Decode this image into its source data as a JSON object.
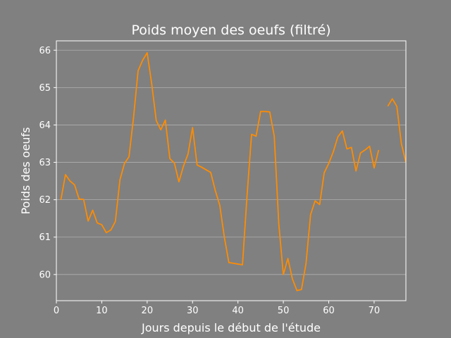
{
  "chart_data": {
    "type": "line",
    "title": "Poids moyen des oeufs (filtré)",
    "xlabel": "Jours depuis le début de l'étude",
    "ylabel": "Poids des oeufs",
    "xlim": [
      0,
      77
    ],
    "ylim": [
      59.3,
      66.25
    ],
    "xticks": [
      0,
      10,
      20,
      30,
      40,
      50,
      60,
      70
    ],
    "yticks": [
      60,
      61,
      62,
      63,
      64,
      65,
      66
    ],
    "grid": "horizontal",
    "legend": "none",
    "colors": {
      "background": "#808080",
      "line": "#ff8c00",
      "grid": "#b0b0b0",
      "text": "#ffffff"
    },
    "series": [
      {
        "segments": [
          {
            "x": [
              1,
              2,
              3,
              4,
              5,
              6,
              7,
              8,
              9,
              10,
              11,
              12,
              13,
              14,
              15,
              16,
              17,
              18,
              19,
              20,
              21,
              22,
              23,
              24,
              25,
              26,
              27,
              28,
              29,
              30,
              31,
              32,
              33,
              34,
              35,
              36,
              37,
              38,
              39,
              40,
              41,
              42,
              43,
              44,
              45,
              46,
              47,
              48,
              49,
              50,
              51,
              52,
              53,
              54,
              55,
              56,
              57,
              58,
              59,
              60,
              61,
              62,
              63,
              64,
              65,
              66,
              67,
              68,
              69,
              70,
              71
            ],
            "y": [
              62.0,
              62.67,
              62.5,
              62.4,
              62.02,
              62.01,
              61.43,
              61.72,
              61.38,
              61.33,
              61.12,
              61.19,
              61.42,
              62.53,
              62.97,
              63.15,
              64.2,
              65.45,
              65.73,
              65.93,
              65.1,
              64.12,
              63.87,
              64.13,
              63.1,
              62.98,
              62.48,
              62.9,
              63.22,
              63.93,
              62.93,
              62.87,
              62.8,
              62.73,
              62.25,
              61.85,
              61.0,
              60.32,
              60.3,
              60.28,
              60.26,
              62.1,
              63.75,
              63.7,
              64.36,
              64.36,
              64.35,
              63.7,
              61.35,
              60.0,
              60.43,
              59.88,
              59.57,
              59.6,
              60.3,
              61.6,
              61.97,
              61.87,
              62.72,
              62.97,
              63.28,
              63.68,
              63.84,
              63.36,
              63.4,
              62.77,
              63.25,
              63.33,
              63.43,
              62.85,
              63.33
            ]
          },
          {
            "x": [
              73,
              74,
              75,
              76,
              77
            ],
            "y": [
              64.5,
              64.7,
              64.5,
              63.5,
              63.0
            ]
          }
        ]
      }
    ]
  }
}
